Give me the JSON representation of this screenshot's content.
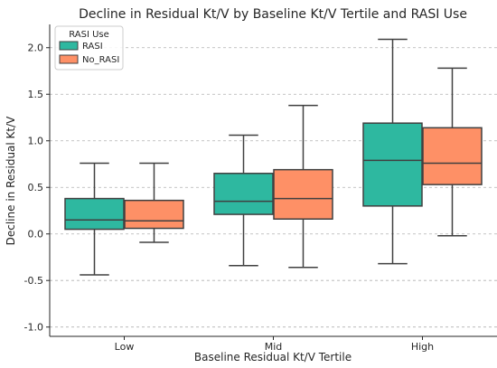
{
  "chart_data": {
    "type": "box",
    "title": "Decline in Residual Kt/V by Baseline Kt/V Tertile and RASI Use",
    "xlabel": "Baseline Residual Kt/V Tertile",
    "ylabel": "Decline in Residual Kt/V",
    "ylim": [
      -1.1,
      2.25
    ],
    "yticks": [
      "-1.0",
      "-0.5",
      "0.0",
      "0.5",
      "1.0",
      "1.5",
      "2.0"
    ],
    "grid": "horizontal dashed",
    "categories": [
      "Low",
      "Mid",
      "High"
    ],
    "legend": {
      "title": "RASI Use",
      "placement": "top-left"
    },
    "series": [
      {
        "name": "RASI",
        "color": "#2eb8a0",
        "boxes": [
          {
            "whisker_low": -0.44,
            "q1": 0.05,
            "median": 0.15,
            "q3": 0.38,
            "whisker_high": 0.76
          },
          {
            "whisker_low": -0.34,
            "q1": 0.21,
            "median": 0.35,
            "q3": 0.65,
            "whisker_high": 1.06
          },
          {
            "whisker_low": -0.32,
            "q1": 0.3,
            "median": 0.79,
            "q3": 1.19,
            "whisker_high": 2.09
          }
        ]
      },
      {
        "name": "No_RASI",
        "color": "#fe9066",
        "boxes": [
          {
            "whisker_low": -0.09,
            "q1": 0.06,
            "median": 0.14,
            "q3": 0.36,
            "whisker_high": 0.76
          },
          {
            "whisker_low": -0.36,
            "q1": 0.16,
            "median": 0.38,
            "q3": 0.69,
            "whisker_high": 1.38
          },
          {
            "whisker_low": -0.02,
            "q1": 0.53,
            "median": 0.76,
            "q3": 1.14,
            "whisker_high": 1.78
          }
        ]
      }
    ]
  }
}
